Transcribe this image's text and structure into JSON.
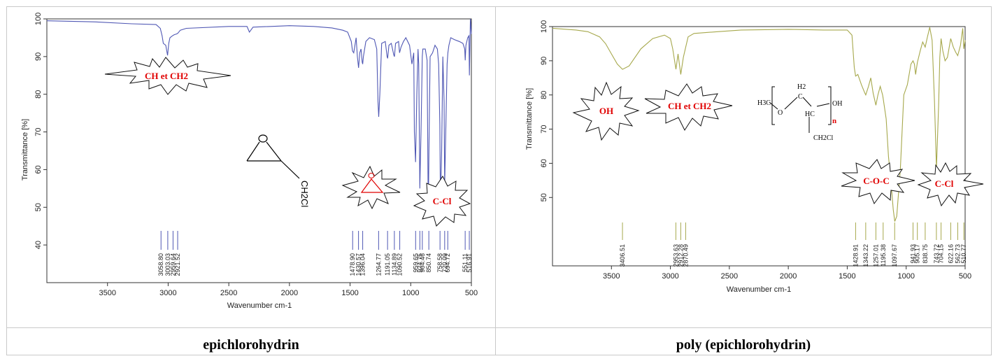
{
  "chart_data": [
    {
      "type": "line",
      "caption": "epichlorohydrin",
      "xlabel": "Wavenumber cm-1",
      "ylabel": "Transmittance [%]",
      "xlim": [
        4000,
        500
      ],
      "ylim": [
        30,
        100
      ],
      "x_ticks": [
        3500,
        3000,
        2500,
        2000,
        1500,
        1000,
        500
      ],
      "y_ticks": [
        40,
        50,
        60,
        70,
        80,
        90,
        100
      ],
      "grid": false,
      "line_color": "#4f57b4",
      "series": [
        {
          "x": [
            4000,
            3600,
            3300,
            3100,
            3065,
            3050,
            3040,
            3020,
            3005,
            2995,
            2985,
            2965,
            2950,
            2930,
            2920,
            2900,
            2850,
            2500,
            2350,
            2330,
            2300,
            2000,
            1800,
            1650,
            1560,
            1520,
            1490,
            1480,
            1470,
            1450,
            1440,
            1430,
            1420,
            1410,
            1400,
            1396,
            1390,
            1370,
            1340,
            1300,
            1280,
            1270,
            1264,
            1255,
            1240,
            1210,
            1195,
            1190,
            1180,
            1160,
            1140,
            1134,
            1125,
            1100,
            1092,
            1080,
            1060,
            1040,
            1010,
            990,
            975,
            970,
            960,
            950,
            940,
            934,
            925,
            915,
            905,
            900,
            880,
            865,
            855,
            850,
            840,
            820,
            800,
            780,
            770,
            760,
            755,
            745,
            735,
            725,
            720,
            710,
            700,
            694,
            685,
            670,
            640,
            600,
            570,
            555,
            551,
            545,
            530,
            520,
            516,
            508,
            500
          ],
          "y": [
            99.5,
            99.2,
            98.7,
            98.5,
            97.5,
            95.5,
            93.5,
            93.0,
            90.3,
            93.5,
            95,
            95.5,
            95.8,
            96.0,
            96.2,
            97.0,
            97.5,
            98.0,
            98.0,
            96.5,
            97.8,
            98.2,
            98.0,
            97.6,
            97.0,
            96.5,
            94.0,
            91.5,
            91.0,
            95.0,
            90.0,
            87.0,
            91.0,
            92.0,
            88.5,
            88.0,
            90.0,
            94.0,
            95.0,
            94.5,
            92.0,
            78.0,
            74.0,
            80.0,
            93.5,
            94.0,
            90.0,
            89.5,
            93.0,
            93.5,
            90.5,
            90.0,
            93.5,
            94.0,
            91.0,
            92.5,
            94.0,
            95.0,
            93.0,
            88.0,
            91.0,
            70.0,
            62.0,
            80.0,
            92.0,
            88.0,
            55.0,
            70.0,
            90.0,
            92.0,
            92.0,
            89.0,
            47.5,
            65.0,
            90.0,
            91.0,
            93.0,
            92.0,
            88.0,
            72.0,
            50.0,
            65.0,
            90.0,
            78.0,
            56.0,
            72.0,
            88.0,
            91.0,
            93.0,
            95.0,
            94.5,
            94.0,
            93.5,
            92.0,
            89.0,
            93.0,
            95.0,
            95.5,
            85.0,
            100.0,
            96.0
          ]
        }
      ],
      "peak_labels": [
        "3058.80",
        "3003.03",
        "2959.64",
        "2921.52",
        "1478.90",
        "1430.57",
        "1396.04",
        "1264.77",
        "1191.05",
        "1134.89",
        "1090.52",
        "959.65",
        "924.75",
        "904.46",
        "850.74",
        "758.58",
        "720.09",
        "694.72",
        "551.11",
        "516.91"
      ],
      "peak_x": [
        3058.8,
        3003.03,
        2959.64,
        2921.52,
        1478.9,
        1430.57,
        1396.04,
        1264.77,
        1191.05,
        1134.89,
        1090.52,
        959.65,
        924.75,
        904.46,
        850.74,
        758.58,
        720.09,
        694.72,
        551.11,
        516.91
      ],
      "annotations": [
        {
          "label": "CH et CH2",
          "shape": "burst"
        },
        {
          "label": "C-Cl",
          "shape": "burst"
        },
        {
          "label": "O",
          "shape": "burst-with-triangle"
        },
        {
          "label": "CH2Cl",
          "shape": "epoxide-structure"
        }
      ]
    },
    {
      "type": "line",
      "caption": "poly (epichlorohydrin)",
      "xlabel": "Wavenumber cm-1",
      "ylabel": "Transmittance [%]",
      "xlim": [
        4000,
        500
      ],
      "ylim": [
        30,
        100
      ],
      "x_ticks": [
        3500,
        3000,
        2500,
        2000,
        1500,
        1000,
        500
      ],
      "y_ticks": [
        50,
        60,
        70,
        80,
        90,
        100
      ],
      "grid": false,
      "line_color": "#a6a84c",
      "series": [
        {
          "x": [
            4000,
            3800,
            3700,
            3600,
            3550,
            3500,
            3450,
            3406,
            3350,
            3250,
            3150,
            3050,
            3000,
            2980,
            2953,
            2935,
            2912,
            2890,
            2870,
            2850,
            2800,
            2600,
            2400,
            2000,
            1700,
            1550,
            1500,
            1460,
            1440,
            1429,
            1410,
            1380,
            1350,
            1343,
            1320,
            1300,
            1280,
            1257,
            1240,
            1220,
            1200,
            1195,
            1170,
            1150,
            1130,
            1110,
            1097,
            1080,
            1050,
            1020,
            990,
            960,
            942,
            930,
            920,
            905,
            880,
            860,
            839,
            820,
            800,
            780,
            760,
            743,
            725,
            715,
            704,
            690,
            670,
            650,
            622,
            600,
            580,
            563,
            540,
            520,
            511,
            500
          ],
          "y": [
            99.5,
            99.0,
            98.5,
            97.0,
            95.0,
            92.0,
            89.0,
            87.5,
            88.5,
            93.5,
            96.5,
            97.5,
            96.5,
            93.5,
            87.5,
            92.0,
            86.0,
            91.0,
            94.0,
            97.0,
            98.0,
            98.5,
            99.0,
            99.2,
            99.0,
            99.0,
            99.0,
            97.5,
            88.0,
            85.5,
            86.0,
            83.0,
            80.5,
            80.0,
            82.5,
            85.0,
            80.5,
            77.0,
            80.0,
            82.5,
            80.0,
            79.0,
            73.0,
            62.0,
            55.0,
            46.5,
            43.0,
            44.5,
            58.0,
            80.0,
            83.0,
            89.0,
            90.0,
            89.0,
            86.0,
            89.5,
            93.0,
            95.5,
            94.0,
            97.0,
            99.8,
            96.0,
            78.0,
            58.5,
            77.0,
            91.0,
            96.5,
            93.0,
            90.0,
            91.0,
            96.5,
            94.0,
            92.5,
            91.5,
            94.5,
            99.5,
            93.5,
            96.0
          ]
        }
      ],
      "peak_labels": [
        "3406.51",
        "2953.63",
        "2912.28",
        "2870.49",
        "1428.91",
        "1343.22",
        "1257.01",
        "1195.38",
        "1097.67",
        "941.93",
        "905.17",
        "838.75",
        "743.72",
        "704.15",
        "622.16",
        "562.73",
        "510.77"
      ],
      "peak_x": [
        3406.51,
        2953.63,
        2912.28,
        2870.49,
        1428.91,
        1343.22,
        1257.01,
        1195.38,
        1097.67,
        941.93,
        905.17,
        838.75,
        743.72,
        704.15,
        622.16,
        562.73,
        510.77
      ],
      "annotations": [
        {
          "label": "OH",
          "shape": "burst"
        },
        {
          "label": "CH et CH2",
          "shape": "burst"
        },
        {
          "label": "C-O-C",
          "shape": "burst"
        },
        {
          "label": "C-Cl",
          "shape": "burst"
        }
      ],
      "structure_labels": [
        "H3C",
        "O",
        "H2",
        "C",
        "HC",
        "OH",
        "n",
        "CH2Cl"
      ]
    }
  ]
}
